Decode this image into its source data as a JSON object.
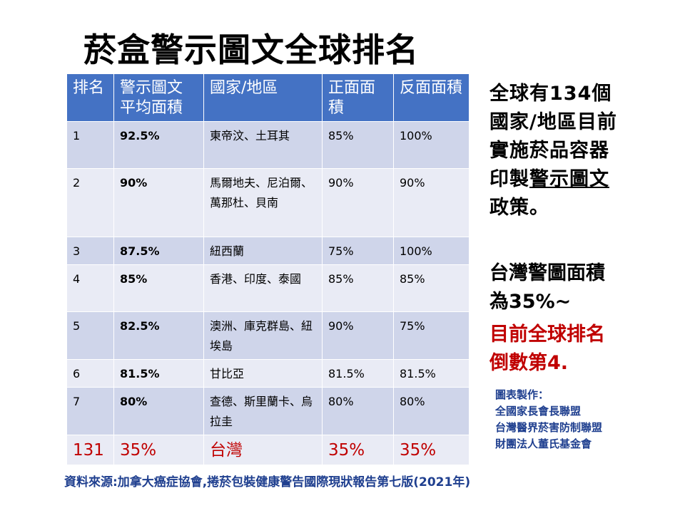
{
  "title": "菸盒警示圖文全球排名",
  "table": {
    "headers": [
      "排名",
      "警示圖文平均面積",
      "國家/地區",
      "正面面積",
      "反面面積"
    ],
    "rows": [
      {
        "rank": "1",
        "avg": "92.5%",
        "country": "東帝汶、土耳其",
        "front": "85%",
        "back": "100%"
      },
      {
        "rank": "2",
        "avg": "90%",
        "country": "馬爾地夫、尼泊爾、萬那杜、貝南",
        "front": "90%",
        "back": "90%"
      },
      {
        "rank": "3",
        "avg": "87.5%",
        "country": "紐西蘭",
        "front": "75%",
        "back": "100%"
      },
      {
        "rank": "4",
        "avg": "85%",
        "country": "香港、印度、泰國",
        "front": "85%",
        "back": "85%"
      },
      {
        "rank": "5",
        "avg": "82.5%",
        "country": "澳洲、庫克群島、紐埃島",
        "front": "90%",
        "back": "75%"
      },
      {
        "rank": "6",
        "avg": "81.5%",
        "country": "甘比亞",
        "front": "81.5%",
        "back": "81.5%"
      },
      {
        "rank": "7",
        "avg": "80%",
        "country": "查德、斯里蘭卡、烏拉圭",
        "front": "80%",
        "back": "80%"
      },
      {
        "rank": "131",
        "avg": "35%",
        "country": "台灣",
        "front": "35%",
        "back": "35%"
      }
    ]
  },
  "side": {
    "policy_a": "全球有134個國家/地區目前實施菸品容器印製",
    "policy_b": "警示圖文",
    "policy_c": "政策。",
    "taiwan_area": "台灣警圖面積為35%~",
    "taiwan_rank": "目前全球排名倒數第4."
  },
  "credit": {
    "label": "圖表製作：",
    "orgs": [
      "全國家長會長聯盟",
      "台灣醫界菸害防制聯盟",
      "財團法人董氏基金會"
    ]
  },
  "source": "資料來源:加拿大癌症協會,捲菸包裝健康警告國際現狀報告第七版(2021年)",
  "colors": {
    "header": "#4472c4",
    "row_dark": "#cfd5ea",
    "row_light": "#e9ebf5",
    "highlight": "#c00000",
    "credit": "#1f3f8f"
  }
}
